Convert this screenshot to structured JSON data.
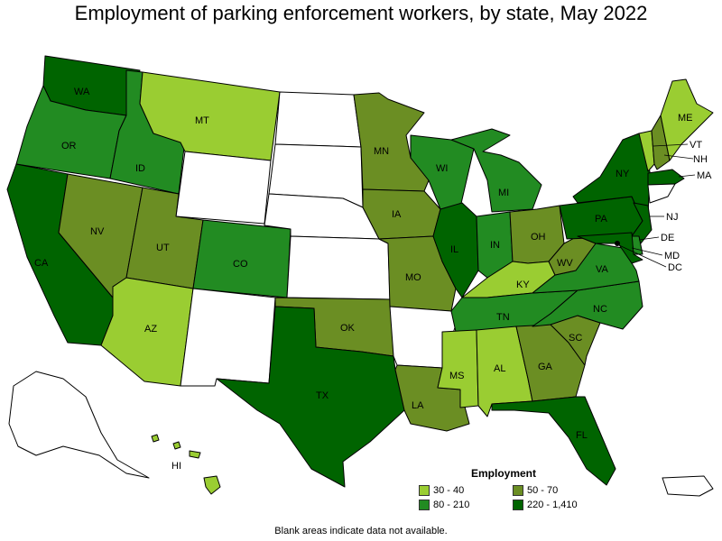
{
  "title": "Employment of parking enforcement workers, by state, May 2022",
  "footnote": "Blank areas indicate data not available.",
  "colors": {
    "c1": "#9acd32",
    "c2": "#6b8e23",
    "c3": "#228b22",
    "c4": "#006400",
    "blank": "#ffffff"
  },
  "legend": {
    "title": "Employment",
    "items": [
      {
        "label": "30 - 40",
        "bin": "c1"
      },
      {
        "label": "50 - 70",
        "bin": "c2"
      },
      {
        "label": "80 - 210",
        "bin": "c3"
      },
      {
        "label": "220 - 1,410",
        "bin": "c4"
      }
    ]
  },
  "states": {
    "WA": "c4",
    "OR": "c3",
    "CA": "c4",
    "ID": "c3",
    "NV": "c2",
    "MT": "c1",
    "WY": "blank",
    "UT": "c2",
    "AZ": "c1",
    "CO": "c3",
    "NM": "blank",
    "ND": "blank",
    "SD": "blank",
    "NE": "blank",
    "KS": "blank",
    "OK": "c2",
    "TX": "c4",
    "MN": "c2",
    "IA": "c2",
    "MO": "c2",
    "AR": "blank",
    "LA": "c2",
    "WI": "c3",
    "IL": "c4",
    "MI": "c3",
    "IN": "c3",
    "OH": "c2",
    "KY": "c1",
    "TN": "c3",
    "MS": "c1",
    "AL": "c1",
    "GA": "c2",
    "FL": "c4",
    "SC": "c2",
    "NC": "c3",
    "VA": "c3",
    "WV": "c2",
    "PA": "c4",
    "NY": "c4",
    "ME": "c1",
    "VT": "c1",
    "NH": "c2",
    "MA": "c4",
    "NJ": "c4",
    "DE": "c3",
    "MD": "c4",
    "DC": "c4",
    "AK": "blank",
    "HI": "c1",
    "PR": "blank"
  },
  "labels": {
    "WA": "WA",
    "OR": "OR",
    "CA": "CA",
    "ID": "ID",
    "NV": "NV",
    "MT": "MT",
    "UT": "UT",
    "AZ": "AZ",
    "CO": "CO",
    "OK": "OK",
    "TX": "TX",
    "MN": "MN",
    "IA": "IA",
    "MO": "MO",
    "LA": "LA",
    "WI": "WI",
    "IL": "IL",
    "MI": "MI",
    "IN": "IN",
    "OH": "OH",
    "KY": "KY",
    "TN": "TN",
    "MS": "MS",
    "AL": "AL",
    "GA": "GA",
    "FL": "FL",
    "SC": "SC",
    "NC": "NC",
    "VA": "VA",
    "WV": "WV",
    "PA": "PA",
    "NY": "NY",
    "ME": "ME",
    "VT": "VT",
    "NH": "NH",
    "MA": "MA",
    "NJ": "NJ",
    "DE": "DE",
    "MD": "MD",
    "DC": "DC",
    "HI": "HI"
  }
}
